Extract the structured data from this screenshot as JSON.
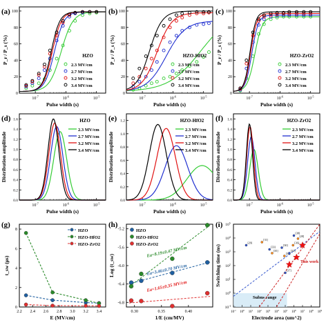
{
  "figure": {
    "panels": [
      {
        "id": "a",
        "label": "(a)"
      },
      {
        "id": "b",
        "label": "(b)"
      },
      {
        "id": "c",
        "label": "(c)"
      },
      {
        "id": "d",
        "label": "(d)"
      },
      {
        "id": "e",
        "label": "(e)"
      },
      {
        "id": "f",
        "label": "(f)"
      },
      {
        "id": "g",
        "label": "(g)"
      },
      {
        "id": "h",
        "label": "(h)"
      },
      {
        "id": "i",
        "label": "(i)"
      }
    ]
  },
  "colors": {
    "green": "#33cc33",
    "blue": "#1f2fd0",
    "red": "#e01010",
    "black": "#000000",
    "dash_blue": "#1f5fa0",
    "dash_green": "#2a8a2a",
    "dash_red": "#e03030",
    "orange": "#ff8c1a"
  },
  "field_legend": [
    "2.3 MV/cm",
    "2.7 MV/cm",
    "3.2 MV/cm",
    "3.4 MV/cm"
  ],
  "chart_data": [
    {
      "panel": "a",
      "type": "scatter",
      "title": "HZO",
      "xlabel": "Pulse width (s)",
      "ylabel": "P_r / P_s (%)",
      "xscale": "log",
      "xlim": [
        3e-08,
        2e-05
      ],
      "ylim": [
        0,
        105
      ],
      "xticks": [
        "10^-7",
        "10^-6",
        "10^-5"
      ],
      "yticks": [
        0,
        20,
        40,
        60,
        80,
        100
      ],
      "series": [
        {
          "name": "2.3 MV/cm",
          "x50": 7e-07,
          "width": 0.55,
          "marker": "circle",
          "x": [
            5e-08,
            8e-08,
            1.3e-07,
            2e-07,
            3e-07,
            5e-07,
            8e-07,
            1.3e-06,
            2e-06,
            3.5e-06,
            6e-06,
            1e-05
          ],
          "values": [
            6,
            9,
            12,
            17,
            28,
            42,
            58,
            76,
            88,
            95,
            97,
            98
          ]
        },
        {
          "name": "2.7 MV/cm",
          "x50": 4.2e-07,
          "width": 0.45,
          "marker": "circle",
          "x": [
            5e-08,
            8e-08,
            1.3e-07,
            2e-07,
            3e-07,
            5e-07,
            8e-07,
            1.3e-06,
            2e-06,
            3.5e-06,
            6e-06,
            1e-05
          ],
          "values": [
            8,
            12,
            18,
            28,
            42,
            64,
            82,
            93,
            97,
            98,
            99,
            99
          ]
        },
        {
          "name": "3.2 MV/cm",
          "x50": 3.6e-07,
          "width": 0.42,
          "marker": "circle",
          "x": [
            5e-08,
            8e-08,
            1.3e-07,
            2e-07,
            3e-07,
            5e-07,
            8e-07,
            1.3e-06,
            2e-06,
            3.5e-06,
            6e-06,
            1e-05
          ],
          "values": [
            9,
            14,
            22,
            32,
            48,
            70,
            86,
            95,
            98,
            99,
            99,
            99
          ]
        },
        {
          "name": "3.4 MV/cm",
          "x50": 3.3e-07,
          "width": 0.4,
          "marker": "circle",
          "x": [
            5e-08,
            8e-08,
            1.3e-07,
            2e-07,
            3e-07,
            5e-07,
            8e-07,
            1.3e-06,
            2e-06,
            3.5e-06,
            6e-06,
            1e-05
          ],
          "values": [
            10,
            15,
            24,
            35,
            52,
            74,
            88,
            96,
            98,
            99,
            99,
            99
          ]
        }
      ]
    },
    {
      "panel": "b",
      "type": "scatter",
      "title": "HZO-HfO2",
      "xlabel": "Pulse width (s)",
      "ylabel": "P_r / P_s (%)",
      "xscale": "log",
      "xlim": [
        3e-08,
        2e-05
      ],
      "ylim": [
        0,
        105
      ],
      "xticks": [
        "10^-7",
        "10^-6",
        "10^-5"
      ],
      "yticks": [
        0,
        20,
        40,
        60,
        80,
        100
      ],
      "series": [
        {
          "name": "2.3 MV/cm",
          "x50": 8e-06,
          "width": 1.5,
          "max": 100,
          "x": [
            5e-08,
            8e-08,
            1.3e-07,
            2e-07,
            3e-07,
            5e-07,
            8e-07,
            1.3e-06,
            2e-06,
            3.5e-06,
            6e-06,
            1e-05,
            1.5e-05
          ],
          "values": [
            4,
            6,
            9,
            12,
            14,
            18,
            20,
            24,
            28,
            33,
            38,
            44,
            50
          ]
        },
        {
          "name": "2.7 MV/cm",
          "x50": 6e-07,
          "width": 0.9,
          "max": 88,
          "x": [
            5e-08,
            8e-08,
            1.3e-07,
            2e-07,
            3e-07,
            5e-07,
            8e-07,
            1.3e-06,
            2e-06,
            3.5e-06,
            6e-06,
            1e-05,
            1.5e-05
          ],
          "values": [
            8,
            14,
            20,
            28,
            38,
            52,
            62,
            70,
            76,
            80,
            83,
            84,
            85
          ]
        },
        {
          "name": "3.2 MV/cm",
          "x50": 3e-07,
          "width": 0.7,
          "max": 98,
          "x": [
            5e-08,
            8e-08,
            1.3e-07,
            2e-07,
            3e-07,
            5e-07,
            8e-07,
            1.3e-06,
            2e-06,
            3.5e-06,
            6e-06,
            1e-05,
            1.5e-05
          ],
          "values": [
            12,
            20,
            30,
            42,
            52,
            68,
            80,
            88,
            92,
            95,
            97,
            97,
            98
          ]
        },
        {
          "name": "3.4 MV/cm",
          "x50": 1.7e-07,
          "width": 0.6,
          "max": 100,
          "x": [
            5e-08,
            8e-08,
            1.3e-07,
            2e-07,
            3e-07,
            5e-07,
            8e-07,
            1.3e-06,
            2e-06,
            3.5e-06,
            6e-06,
            1e-05,
            1.5e-05
          ],
          "values": [
            18,
            30,
            45,
            58,
            70,
            82,
            90,
            95,
            97,
            98,
            99,
            99,
            99
          ]
        }
      ]
    },
    {
      "panel": "c",
      "type": "scatter",
      "title": "HZO-ZrO2",
      "xlabel": "Pulse width (s)",
      "ylabel": "P_r / P_s (%)",
      "xscale": "log",
      "xlim": [
        3e-08,
        2e-05
      ],
      "ylim": [
        0,
        105
      ],
      "xticks": [
        "10^-7",
        "10^-6",
        "10^-5"
      ],
      "yticks": [
        0,
        20,
        40,
        60,
        80,
        100
      ],
      "series": [
        {
          "name": "2.3 MV/cm",
          "x50": 1.5e-07,
          "width": 0.35,
          "max": 93,
          "x": [
            5e-08,
            8e-08,
            1.3e-07,
            2e-07,
            3e-07,
            5e-07,
            8e-07,
            1.3e-06,
            2e-06,
            3.5e-06,
            6e-06,
            1e-05
          ],
          "values": [
            3,
            18,
            45,
            72,
            84,
            90,
            92,
            93,
            93,
            93,
            93,
            93
          ]
        },
        {
          "name": "2.7 MV/cm",
          "x50": 1.2e-07,
          "width": 0.3,
          "max": 95,
          "x": [
            5e-08,
            8e-08,
            1.3e-07,
            2e-07,
            3e-07,
            5e-07,
            8e-07,
            1.3e-06,
            2e-06,
            3.5e-06,
            6e-06,
            1e-05
          ],
          "values": [
            4,
            30,
            62,
            83,
            90,
            93,
            94,
            95,
            95,
            95,
            95,
            95
          ]
        },
        {
          "name": "3.2 MV/cm",
          "x50": 1.1e-07,
          "width": 0.28,
          "max": 97,
          "x": [
            5e-08,
            8e-08,
            1.3e-07,
            2e-07,
            3e-07,
            5e-07,
            8e-07,
            1.3e-06,
            2e-06,
            3.5e-06,
            6e-06,
            1e-05
          ],
          "values": [
            5,
            36,
            70,
            88,
            93,
            95,
            96,
            97,
            97,
            97,
            97,
            97
          ]
        },
        {
          "name": "3.4 MV/cm",
          "x50": 1.05e-07,
          "width": 0.27,
          "max": 99,
          "x": [
            5e-08,
            8e-08,
            1.3e-07,
            2e-07,
            3e-07,
            5e-07,
            8e-07,
            1.3e-06,
            2e-06,
            3.5e-06,
            6e-06,
            1e-05
          ],
          "values": [
            6,
            40,
            74,
            90,
            95,
            97,
            98,
            98,
            99,
            99,
            99,
            99
          ]
        }
      ]
    },
    {
      "panel": "d",
      "type": "line",
      "title": "HZO",
      "xlabel": "Pulse width (s)",
      "ylabel": "Distribution amplitude",
      "xscale": "log",
      "xlim": [
        3e-08,
        2e-05
      ],
      "ylim": [
        0,
        1.7
      ],
      "xticks": [
        "10^-7",
        "10^-6",
        "10^-5"
      ],
      "yticks": [
        "0.0",
        "0.2",
        "0.4",
        "0.6",
        "0.8",
        "1.0",
        "1.2",
        "1.4",
        "1.6"
      ],
      "series": [
        {
          "name": "2.3 MV/cm",
          "peak_x": 6.5e-07,
          "peak_y": 1.35,
          "sigma": 0.21
        },
        {
          "name": "2.7 MV/cm",
          "peak_x": 5e-07,
          "peak_y": 1.45,
          "sigma": 0.2
        },
        {
          "name": "3.2 MV/cm",
          "peak_x": 4.3e-07,
          "peak_y": 1.52,
          "sigma": 0.19
        },
        {
          "name": "3.4 MV/cm",
          "peak_x": 3.9e-07,
          "peak_y": 1.6,
          "sigma": 0.18
        }
      ]
    },
    {
      "panel": "e",
      "type": "line",
      "title": "HZO-HfO2",
      "xlabel": "Pulse width (s)",
      "ylabel": "Distribution amplitude",
      "xscale": "log",
      "xlim": [
        3e-08,
        2e-05
      ],
      "ylim": [
        0,
        1.3
      ],
      "xticks": [
        "10^-7",
        "10^-6",
        "10^-5"
      ],
      "yticks": [
        "0.0",
        "0.2",
        "0.4",
        "0.6",
        "0.8",
        "1.0",
        "1.2"
      ],
      "series": [
        {
          "name": "2.3 MV/cm",
          "peak_x": 9e-06,
          "peak_y": 0.52,
          "sigma": 0.5
        },
        {
          "name": "2.7 MV/cm",
          "peak_x": 1.3e-06,
          "peak_y": 0.82,
          "sigma": 0.37
        },
        {
          "name": "3.2 MV/cm",
          "peak_x": 6e-07,
          "peak_y": 1.08,
          "sigma": 0.3
        },
        {
          "name": "3.4 MV/cm",
          "peak_x": 3.2e-07,
          "peak_y": 1.14,
          "sigma": 0.28
        }
      ]
    },
    {
      "panel": "f",
      "type": "line",
      "title": "HZO-ZrO2",
      "xlabel": "Pulse width (s)",
      "ylabel": "Distribution amplitude",
      "xscale": "log",
      "xlim": [
        3e-08,
        2e-05
      ],
      "ylim": [
        0,
        1.7
      ],
      "xticks": [
        "10^-7",
        "10^-6",
        "10^-5"
      ],
      "yticks": [
        "0.0",
        "0.2",
        "0.4",
        "0.6",
        "0.8",
        "1.0",
        "1.2",
        "1.4",
        "1.6"
      ],
      "series": [
        {
          "name": "2.3 MV/cm",
          "peak_x": 1.4e-07,
          "peak_y": 1.0,
          "sigma": 0.14
        },
        {
          "name": "2.7 MV/cm",
          "peak_x": 1.15e-07,
          "peak_y": 1.25,
          "sigma": 0.12
        },
        {
          "name": "3.2 MV/cm",
          "peak_x": 1.05e-07,
          "peak_y": 1.45,
          "sigma": 0.11
        },
        {
          "name": "3.4 MV/cm",
          "peak_x": 1e-07,
          "peak_y": 1.5,
          "sigma": 0.1
        }
      ]
    },
    {
      "panel": "g",
      "type": "line",
      "xlabel": "E (MV/cm)",
      "ylabel": "t_sw (μs)",
      "xlim": [
        2.2,
        3.5
      ],
      "ylim": [
        0,
        8.5
      ],
      "xticks": [
        "2.2",
        "2.4",
        "2.6",
        "2.8",
        "3.0",
        "3.2",
        "3.4"
      ],
      "yticks": [
        "0",
        "2",
        "4",
        "6",
        "8"
      ],
      "x": [
        2.3,
        2.7,
        3.2,
        3.4
      ],
      "series": [
        {
          "name": "HZO",
          "values": [
            1.2,
            0.7,
            0.45,
            0.4
          ]
        },
        {
          "name": "HZO-HfO2",
          "values": [
            7.6,
            1.5,
            0.7,
            0.38
          ]
        },
        {
          "name": "HZO-ZrO2",
          "values": [
            0.25,
            0.14,
            0.12,
            0.11
          ]
        }
      ]
    },
    {
      "panel": "h",
      "type": "scatter",
      "xlabel": "1/E (cm/MV)",
      "ylabel": "Log (t_sw)",
      "xlim": [
        0.285,
        0.445
      ],
      "ylim": [
        -6.9,
        -5.1
      ],
      "xticks": [
        "0.30",
        "0.35",
        "0.40"
      ],
      "yticks": [
        "-5.2",
        "-5.6",
        "-6.0",
        "-6.4",
        "-6.8"
      ],
      "x": [
        0.294,
        0.3125,
        0.37,
        0.435
      ],
      "series": [
        {
          "name": "HZO",
          "values": [
            -6.37,
            -6.33,
            -6.16,
            -5.93
          ]
        },
        {
          "name": "HZO-HfO2",
          "values": [
            -6.45,
            -6.18,
            -5.85,
            -5.12
          ]
        },
        {
          "name": "HZO-ZrO2",
          "values": [
            -6.76,
            -6.77,
            -6.88,
            -6.6
          ]
        }
      ],
      "annotations": [
        {
          "text": "Ea=8.19±0.47 MV/cm",
          "series": "HZO-HfO2"
        },
        {
          "text": "Ea=3.46±0.70 MV/cm",
          "series": "HZO"
        },
        {
          "text": "Ea=1.65±0.35 MV/cm",
          "series": "HZO-ZrO2"
        }
      ]
    },
    {
      "panel": "i",
      "type": "scatter",
      "xlabel": "Electrode area (um^2)",
      "ylabel": "Switching time (ns)",
      "xscale": "log",
      "yscale": "log",
      "xlim": [
        0.1,
        1000000000.0
      ],
      "ylim": [
        0.1,
        100000.0
      ],
      "xticks": [
        "10^-1",
        "10^0",
        "10^1",
        "10^2",
        "10^3",
        "10^4",
        "10^5",
        "10^6",
        "10^7",
        "10^8",
        "10^9"
      ],
      "yticks": [
        "10^-1",
        "10^0",
        "10^1",
        "10^2",
        "10^3",
        "10^4",
        "10^5"
      ],
      "region_labels": [
        "Subns range"
      ],
      "annotations": [
        {
          "text": "This work"
        }
      ],
      "series": [
        {
          "name": "literature",
          "x": [
            3,
            200,
            1500,
            3000,
            40000.0,
            80000.0,
            300000.0,
            800000.0,
            100000.0,
            3000000.0,
            1000000.0
          ],
          "values": [
            3000,
            5000,
            1500,
            800,
            2000,
            500,
            800,
            3000,
            30,
            9000,
            15000
          ],
          "labels": [
            "[29]",
            "[31]",
            "[33]",
            "[35]",
            "[30]",
            "[32]",
            "[34]",
            "[36]",
            "[37]",
            "[28]",
            "[38]"
          ]
        },
        {
          "name": "This work",
          "x": [
            300000.0,
            2000000.0,
            10000000.0
          ],
          "values": [
            120,
            400,
            3000
          ]
        }
      ]
    }
  ]
}
